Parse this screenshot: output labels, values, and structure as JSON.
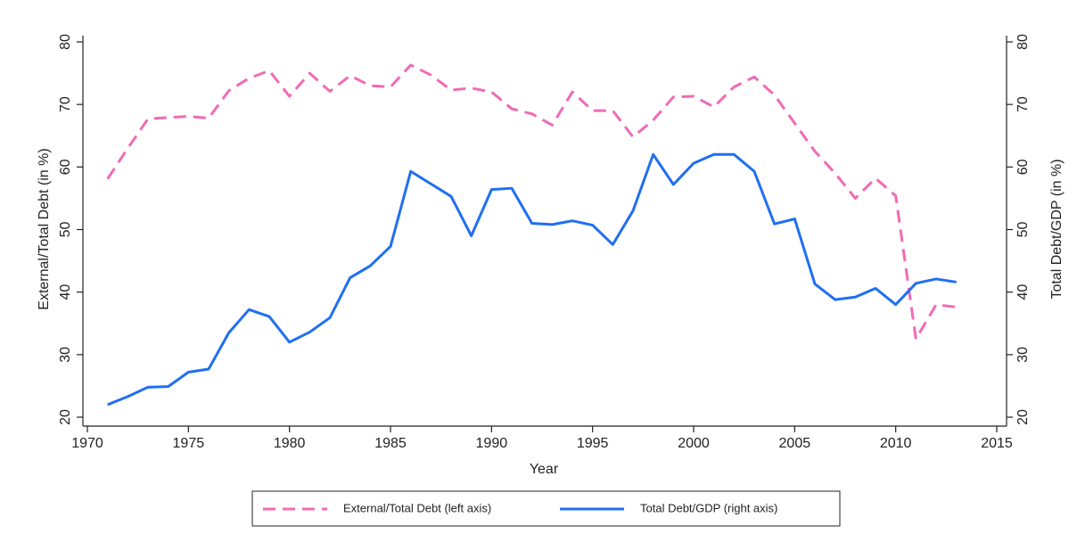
{
  "chart_data": {
    "type": "line",
    "x_label": "Year",
    "y_label": "External/Total Debt (in %)",
    "y2_label": "Total Debt/GDP (in %)",
    "x": [
      1971,
      1972,
      1973,
      1974,
      1975,
      1976,
      1977,
      1978,
      1979,
      1980,
      1981,
      1982,
      1983,
      1984,
      1985,
      1986,
      1987,
      1988,
      1989,
      1990,
      1991,
      1992,
      1993,
      1994,
      1995,
      1996,
      1997,
      1998,
      1999,
      2000,
      2001,
      2002,
      2003,
      2004,
      2005,
      2006,
      2007,
      2008,
      2009,
      2010,
      2011,
      2012,
      2013
    ],
    "series": [
      {
        "name": "External/Total Debt (left axis)",
        "color": "#f06bb4",
        "line_style": "dashed",
        "values": [
          58.1,
          63,
          67.7,
          67.9,
          68.1,
          67.8,
          72.2,
          74.2,
          75.4,
          71.3,
          75,
          72.1,
          74.6,
          73,
          72.8,
          76.3,
          74.7,
          72.3,
          72.6,
          72,
          69.3,
          68.5,
          66.7,
          72,
          69,
          69,
          64.8,
          67.5,
          71.2,
          71.3,
          69.6,
          72.8,
          74.4,
          71.5,
          67,
          62.5,
          59,
          55,
          58.2,
          55.4,
          32.5,
          38,
          37.6
        ]
      },
      {
        "name": "Total Debt/GDP (right axis)",
        "color": "#1f6ff2",
        "line_style": "solid",
        "axis": "y2",
        "values": [
          22,
          23.3,
          24.8,
          24.9,
          27.2,
          27.7,
          33.5,
          37.2,
          36.1,
          32,
          33.6,
          35.9,
          42.3,
          44.2,
          47.3,
          59.3,
          57.3,
          55.3,
          49,
          56.4,
          56.6,
          51,
          50.8,
          51.4,
          50.7,
          47.6,
          53,
          62,
          57.2,
          60.6,
          62,
          62,
          59.3,
          50.9,
          51.7,
          41.3,
          38.8,
          39.2,
          40.6,
          38,
          41.4,
          42.1,
          41.6
        ]
      }
    ],
    "xlim": [
      1970,
      2015
    ],
    "xticks": [
      1970,
      1975,
      1980,
      1985,
      1990,
      1995,
      2000,
      2005,
      2010,
      2015
    ],
    "ylim": [
      20,
      80
    ],
    "yticks": [
      20,
      30,
      40,
      50,
      60,
      70,
      80
    ],
    "y2lim": [
      20,
      80
    ],
    "y2ticks": [
      20,
      30,
      40,
      50,
      60,
      70,
      80
    ],
    "grid": false,
    "legend_position": "bottom"
  }
}
